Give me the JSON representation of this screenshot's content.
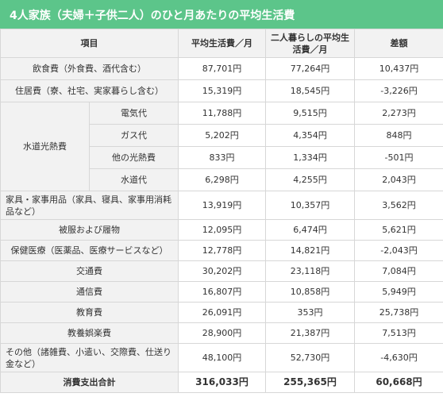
{
  "title": "4人家族（夫婦＋子供二人）のひと月あたりの平均生活費",
  "headers": {
    "item": "項目",
    "family_avg": "平均生活費／月",
    "couple_avg": "二人暮らしの平均生活費／月",
    "difference": "差額"
  },
  "rows": [
    {
      "label": "飲食費（外食費、酒代含む）",
      "family": "87,701円",
      "couple": "77,264円",
      "diff": "10,437円"
    },
    {
      "label": "住居費（寮、社宅、実家暮らし含む）",
      "family": "15,319円",
      "couple": "18,545円",
      "diff": "-3,226円"
    },
    {
      "label": "電気代",
      "family": "11,788円",
      "couple": "9,515円",
      "diff": "2,273円"
    },
    {
      "label": "ガス代",
      "family": "5,202円",
      "couple": "4,354円",
      "diff": "848円"
    },
    {
      "label": "他の光熱費",
      "family": "833円",
      "couple": "1,334円",
      "diff": "-501円"
    },
    {
      "label": "水道代",
      "family": "6,298円",
      "couple": "4,255円",
      "diff": "2,043円"
    },
    {
      "label": "家具・家事用品（家具、寝具、家事用消耗品など）",
      "family": "13,919円",
      "couple": "10,357円",
      "diff": "3,562円"
    },
    {
      "label": "被服および履物",
      "family": "12,095円",
      "couple": "6,474円",
      "diff": "5,621円"
    },
    {
      "label": "保健医療（医薬品、医療サービスなど）",
      "family": "12,778円",
      "couple": "14,821円",
      "diff": "-2,043円"
    },
    {
      "label": "交通費",
      "family": "30,202円",
      "couple": "23,118円",
      "diff": "7,084円"
    },
    {
      "label": "通信費",
      "family": "16,807円",
      "couple": "10,858円",
      "diff": "5,949円"
    },
    {
      "label": "教育費",
      "family": "26,091円",
      "couple": "353円",
      "diff": "25,738円"
    },
    {
      "label": "教養娯楽費",
      "family": "28,900円",
      "couple": "21,387円",
      "diff": "7,513円"
    },
    {
      "label": "その他（諸雑費、小遣い、交際費、仕送り金など）",
      "family": "48,100円",
      "couple": "52,730円",
      "diff": "-4,630円"
    }
  ],
  "utilities_group": "水道光熱費",
  "total": {
    "label": "消費支出合計",
    "family": "316,033円",
    "couple": "255,365円",
    "diff": "60,668円"
  }
}
